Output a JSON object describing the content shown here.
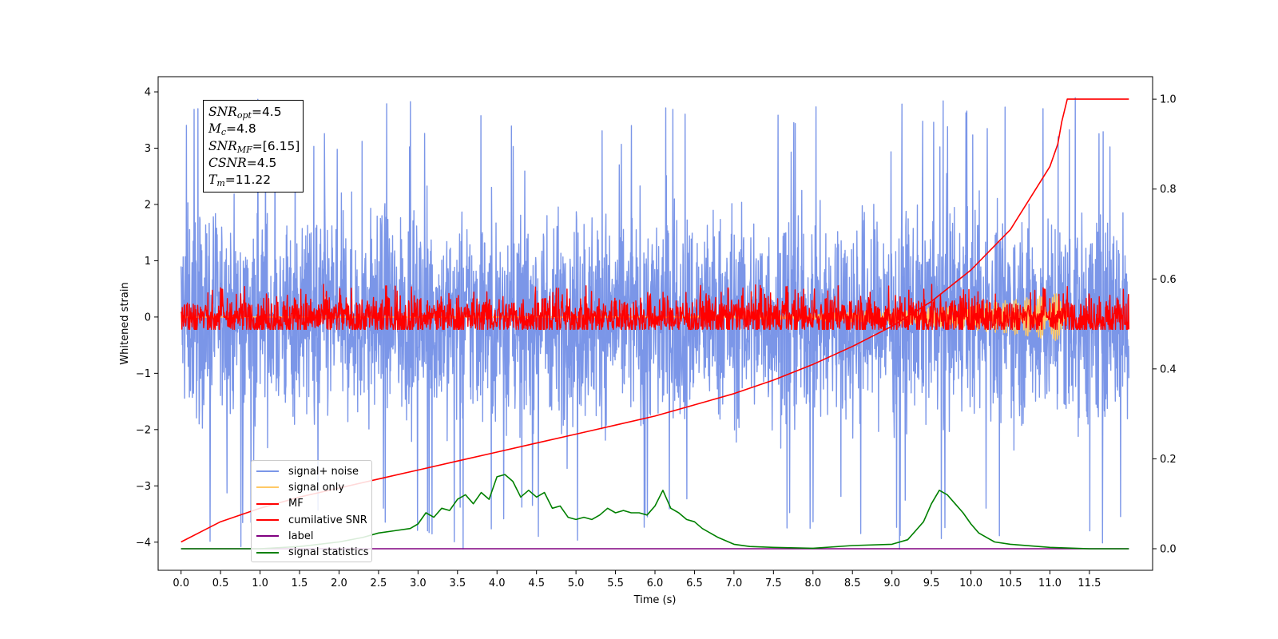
{
  "chart_data": {
    "type": "line",
    "xlabel": "Time (s)",
    "ylabel": "Whitened strain",
    "x_ticks": [
      "0.0",
      "0.5",
      "1.0",
      "1.5",
      "2.0",
      "2.5",
      "3.0",
      "3.5",
      "4.0",
      "4.5",
      "5.0",
      "5.5",
      "6.0",
      "6.5",
      "7.0",
      "7.5",
      "8.0",
      "8.5",
      "9.0",
      "9.5",
      "10.0",
      "10.5",
      "11.0",
      "11.5"
    ],
    "y_ticks": [
      "4",
      "3",
      "2",
      "1",
      "0",
      "−1",
      "−2",
      "−3",
      "−4"
    ],
    "y2_ticks": [
      "1.0",
      "0.8",
      "0.6",
      "0.4",
      "0.2",
      "0.0"
    ],
    "xlim": [
      -0.29,
      12.3
    ],
    "ylim": [
      -4.5,
      4.27
    ],
    "y2lim": [
      -0.048,
      1.05
    ],
    "legend_position": "lower-left",
    "series": [
      {
        "name": "signal+ noise",
        "color": "#7b96e8",
        "axis": "left",
        "kind": "noise",
        "x_range": [
          0.0,
          12.0
        ],
        "band": [
          -1.0,
          1.0
        ],
        "peak_max": 3.9,
        "peak_min": -4.15
      },
      {
        "name": "signal only",
        "color": "#ffc966",
        "axis": "left",
        "kind": "chirp",
        "x_range": [
          0.0,
          11.22
        ],
        "peak": 0.45
      },
      {
        "name": "MF",
        "color": "#ff0000",
        "axis": "left",
        "kind": "noise",
        "x_range": [
          0.0,
          12.0
        ],
        "band": [
          -0.22,
          0.22
        ],
        "peak_max": 0.58,
        "peak_min": -0.22
      },
      {
        "name": "cumilative SNR",
        "color": "#ff0000",
        "axis": "right",
        "x": [
          0.0,
          0.5,
          1.0,
          1.5,
          2.0,
          2.5,
          3.0,
          3.5,
          4.0,
          4.5,
          5.0,
          5.5,
          6.0,
          6.5,
          7.0,
          7.5,
          8.0,
          8.5,
          9.0,
          9.5,
          10.0,
          10.5,
          11.0,
          11.1,
          11.15,
          11.22,
          12.0
        ],
        "y": [
          0.015,
          0.06,
          0.09,
          0.115,
          0.135,
          0.155,
          0.175,
          0.195,
          0.215,
          0.235,
          0.255,
          0.275,
          0.295,
          0.32,
          0.345,
          0.375,
          0.41,
          0.45,
          0.495,
          0.55,
          0.62,
          0.71,
          0.85,
          0.9,
          0.95,
          1.0,
          1.0
        ]
      },
      {
        "name": "label",
        "color": "#800080",
        "axis": "right",
        "x": [
          0.0,
          12.0
        ],
        "y": [
          0.0,
          0.0
        ]
      },
      {
        "name": "signal statistics",
        "color": "#008000",
        "axis": "right",
        "x": [
          0.0,
          1.0,
          1.5,
          2.0,
          2.3,
          2.5,
          2.7,
          2.9,
          3.0,
          3.1,
          3.2,
          3.3,
          3.4,
          3.5,
          3.6,
          3.7,
          3.8,
          3.9,
          4.0,
          4.1,
          4.2,
          4.3,
          4.4,
          4.5,
          4.6,
          4.7,
          4.8,
          4.9,
          5.0,
          5.1,
          5.2,
          5.3,
          5.4,
          5.5,
          5.6,
          5.7,
          5.8,
          5.9,
          6.0,
          6.1,
          6.2,
          6.3,
          6.4,
          6.5,
          6.6,
          6.8,
          7.0,
          7.2,
          7.5,
          8.0,
          8.5,
          9.0,
          9.2,
          9.3,
          9.4,
          9.5,
          9.6,
          9.7,
          9.8,
          9.9,
          10.0,
          10.1,
          10.2,
          10.3,
          10.5,
          11.0,
          11.5,
          12.0
        ],
        "y": [
          0.0,
          0.0,
          0.005,
          0.015,
          0.025,
          0.035,
          0.04,
          0.045,
          0.055,
          0.08,
          0.07,
          0.09,
          0.085,
          0.11,
          0.12,
          0.1,
          0.125,
          0.11,
          0.16,
          0.165,
          0.15,
          0.115,
          0.13,
          0.115,
          0.125,
          0.09,
          0.095,
          0.07,
          0.065,
          0.07,
          0.065,
          0.075,
          0.09,
          0.08,
          0.085,
          0.08,
          0.08,
          0.075,
          0.095,
          0.13,
          0.09,
          0.08,
          0.065,
          0.06,
          0.045,
          0.025,
          0.01,
          0.005,
          0.003,
          0.001,
          0.007,
          0.01,
          0.02,
          0.04,
          0.06,
          0.1,
          0.13,
          0.12,
          0.1,
          0.08,
          0.055,
          0.035,
          0.025,
          0.015,
          0.01,
          0.003,
          0.0,
          0.0
        ]
      }
    ]
  },
  "annotation": {
    "snr_opt": {
      "sym": "SNR",
      "sub": "opt",
      "value": "=4.5"
    },
    "mc": {
      "sym": "M",
      "sub": "c",
      "value": "=4.8"
    },
    "snr_mf": {
      "sym": "SNR",
      "sub": "MF",
      "value": "=[6.15]"
    },
    "csnr": {
      "sym": "CSNR",
      "sub": "",
      "value": "=4.5"
    },
    "tm": {
      "sym": "T",
      "sub": "m",
      "value": "=11.22"
    }
  }
}
